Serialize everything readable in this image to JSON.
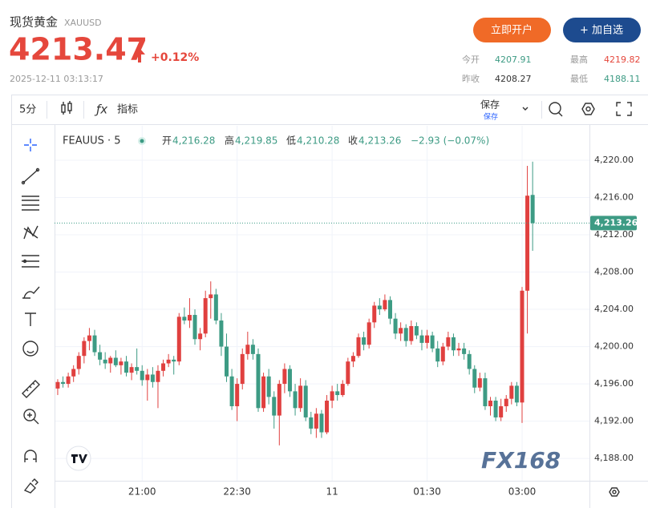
{
  "header": {
    "title": "现货黄金",
    "symbol": "XAUUSD",
    "price": 4213.47,
    "change": "+0.12%",
    "time": "2025-12-11 03:13:17",
    "buttons": [
      "立即开户",
      "+ 加自选"
    ],
    "stats": [
      {
        "label": "今开",
        "value": "4207.91"
      },
      {
        "label": "最高",
        "value": "4219.82"
      },
      {
        "label": "昨收",
        "value": "4208.27"
      },
      {
        "label": "最低",
        "value": "4188.11"
      }
    ]
  },
  "toolbar": {
    "interval": "5分",
    "indicators": "指标",
    "save": "保存",
    "save_sub": "保存"
  },
  "watermark": "FX168",
  "chart_data": {
    "type": "candlestick",
    "up_color": "#e0403f",
    "down_color": "#3d9b84",
    "grid": true,
    "legend": {
      "symbol": "FEAUUS · 5",
      "items": [
        {
          "label": "开",
          "value": "4,216.28"
        },
        {
          "label": "高",
          "value": "4,219.85"
        },
        {
          "label": "低",
          "value": "4,210.28"
        },
        {
          "label": "收",
          "value": "4,213.26"
        }
      ],
      "change": "−2.93 (−0.07%)"
    },
    "last_price": {
      "value": 4213.26,
      "label": "4,213.26"
    },
    "ylim": [
      4185.6,
      4223.7
    ],
    "yticks": [
      {
        "value": 4188,
        "label": "4,188.00"
      },
      {
        "value": 4192,
        "label": "4,192.00"
      },
      {
        "value": 4196,
        "label": "4,196.00"
      },
      {
        "value": 4200,
        "label": "4,200.00"
      },
      {
        "value": 4204,
        "label": "4,204.00"
      },
      {
        "value": 4208,
        "label": "4,208.00"
      },
      {
        "value": 4212,
        "label": "4,212.00"
      },
      {
        "value": 4216,
        "label": "4,216.00"
      },
      {
        "value": 4220,
        "label": "4,220.00"
      }
    ],
    "categories": [
      null,
      null,
      null,
      null,
      null,
      null,
      null,
      null,
      null,
      null,
      null,
      null,
      null,
      null,
      null,
      null,
      "21:00",
      null,
      null,
      null,
      null,
      null,
      null,
      null,
      null,
      null,
      null,
      null,
      null,
      null,
      null,
      null,
      null,
      null,
      "22:30",
      null,
      null,
      null,
      null,
      null,
      null,
      null,
      null,
      null,
      null,
      null,
      null,
      null,
      null,
      null,
      null,
      null,
      "11",
      null,
      null,
      null,
      null,
      null,
      null,
      null,
      null,
      null,
      null,
      null,
      null,
      null,
      null,
      null,
      null,
      null,
      "01:30",
      null,
      null,
      null,
      null,
      null,
      null,
      null,
      null,
      null,
      null,
      null,
      null,
      null,
      null,
      null,
      null,
      null,
      "03:00",
      null,
      null
    ],
    "open": [
      4195.5,
      4196.2,
      4196.0,
      4196.8,
      4197.6,
      4199.0,
      4200.6,
      4201.2,
      4199.4,
      4198.6,
      4198.2,
      4198.8,
      4198.0,
      4198.4,
      4197.2,
      4197.8,
      4197.4,
      4196.4,
      4197.0,
      4196.2,
      4197.4,
      4198.2,
      4198.6,
      4198.4,
      4203.2,
      4202.8,
      4203.4,
      4200.8,
      4201.4,
      4205.2,
      4205.6,
      4202.8,
      4200.0,
      4196.8,
      4193.6,
      4196.0,
      4199.2,
      4200.2,
      4199.2,
      4193.4,
      4196.8,
      4194.6,
      4192.6,
      4196.0,
      4197.6,
      4195.2,
      4193.4,
      4195.8,
      4192.4,
      4191.2,
      4192.8,
      4190.8,
      4194.2,
      4195.2,
      4194.8,
      4196.0,
      4198.4,
      4199.0,
      4201.0,
      4200.2,
      4202.6,
      4204.4,
      4204.0,
      4205.0,
      4203.0,
      4201.4,
      4202.0,
      4200.6,
      4202.2,
      4201.2,
      4200.4,
      4201.2,
      4199.8,
      4198.4,
      4200.0,
      4201.0,
      4199.6,
      4199.8,
      4199.2,
      4197.6,
      4195.6,
      4196.6,
      4193.6,
      4194.2,
      4192.4,
      4193.6,
      4194.4,
      4195.8,
      4194.0,
      4206.0,
      4216.28
    ],
    "high": [
      4196.5,
      4196.8,
      4197.2,
      4198.0,
      4199.4,
      4201.0,
      4202.0,
      4201.8,
      4200.2,
      4199.4,
      4199.0,
      4199.6,
      4198.8,
      4199.0,
      4198.2,
      4199.8,
      4198.0,
      4197.6,
      4197.8,
      4198.0,
      4198.6,
      4199.2,
      4199.0,
      4203.6,
      4204.2,
      4205.2,
      4204.0,
      4202.0,
      4206.0,
      4207.0,
      4206.2,
      4203.6,
      4201.4,
      4197.6,
      4196.6,
      4199.8,
      4201.6,
      4200.8,
      4199.8,
      4197.2,
      4197.6,
      4195.2,
      4196.4,
      4198.2,
      4198.0,
      4196.0,
      4196.6,
      4196.4,
      4193.0,
      4193.4,
      4193.2,
      4194.8,
      4195.8,
      4196.0,
      4196.4,
      4198.8,
      4199.4,
      4201.4,
      4201.6,
      4203.0,
      4204.8,
      4205.2,
      4205.6,
      4205.4,
      4203.6,
      4202.6,
      4202.4,
      4202.8,
      4202.6,
      4201.8,
      4201.8,
      4201.6,
      4200.6,
      4200.4,
      4201.6,
      4201.4,
      4200.4,
      4200.4,
      4199.6,
      4198.0,
      4197.2,
      4197.2,
      4194.6,
      4194.6,
      4194.4,
      4194.8,
      4196.2,
      4196.2,
      4206.4,
      4219.4,
      4219.85
    ],
    "low": [
      4194.8,
      4195.6,
      4195.6,
      4196.2,
      4197.0,
      4198.2,
      4199.6,
      4199.0,
      4198.0,
      4197.6,
      4197.2,
      4197.8,
      4197.0,
      4196.8,
      4196.4,
      4197.0,
      4195.8,
      4194.2,
      4195.6,
      4193.4,
      4196.8,
      4197.8,
      4197.0,
      4198.0,
      4202.4,
      4202.0,
      4200.2,
      4199.6,
      4201.0,
      4203.0,
      4202.4,
      4199.0,
      4196.2,
      4193.2,
      4192.0,
      4195.4,
      4198.6,
      4198.6,
      4193.0,
      4193.0,
      4193.8,
      4191.2,
      4189.4,
      4195.0,
      4194.6,
      4192.6,
      4193.0,
      4192.0,
      4190.6,
      4190.2,
      4190.2,
      4190.6,
      4193.4,
      4194.2,
      4194.6,
      4195.8,
      4197.8,
      4198.8,
      4199.6,
      4199.8,
      4202.0,
      4203.4,
      4203.8,
      4202.4,
      4200.8,
      4200.6,
      4200.0,
      4200.2,
      4200.8,
      4199.6,
      4199.8,
      4199.4,
      4197.8,
      4198.0,
      4199.6,
      4199.0,
      4199.0,
      4198.6,
      4197.0,
      4195.0,
      4195.2,
      4193.2,
      4192.6,
      4192.0,
      4192.0,
      4193.0,
      4193.8,
      4193.6,
      4191.8,
      4201.4,
      4210.28
    ],
    "close": [
      4196.2,
      4196.0,
      4196.8,
      4197.6,
      4199.0,
      4200.6,
      4201.2,
      4199.4,
      4198.6,
      4198.2,
      4198.8,
      4198.0,
      4198.4,
      4197.2,
      4197.8,
      4197.4,
      4196.4,
      4197.0,
      4196.2,
      4197.4,
      4198.2,
      4198.6,
      4198.4,
      4203.2,
      4202.8,
      4203.4,
      4200.8,
      4201.4,
      4205.2,
      4205.6,
      4202.8,
      4200.0,
      4196.8,
      4193.6,
      4196.0,
      4199.2,
      4200.2,
      4199.2,
      4193.4,
      4196.8,
      4194.6,
      4192.6,
      4196.0,
      4197.6,
      4195.2,
      4193.4,
      4195.8,
      4192.4,
      4191.2,
      4192.8,
      4190.8,
      4194.2,
      4195.2,
      4194.8,
      4196.0,
      4198.4,
      4199.0,
      4201.0,
      4200.2,
      4202.6,
      4204.4,
      4204.0,
      4205.0,
      4203.0,
      4201.4,
      4202.0,
      4200.6,
      4202.2,
      4201.2,
      4200.4,
      4201.2,
      4199.8,
      4198.4,
      4200.0,
      4201.0,
      4199.6,
      4199.8,
      4199.2,
      4197.6,
      4195.6,
      4196.6,
      4193.6,
      4194.2,
      4192.4,
      4193.6,
      4194.4,
      4195.8,
      4194.0,
      4206.0,
      4216.2,
      4213.26
    ]
  }
}
